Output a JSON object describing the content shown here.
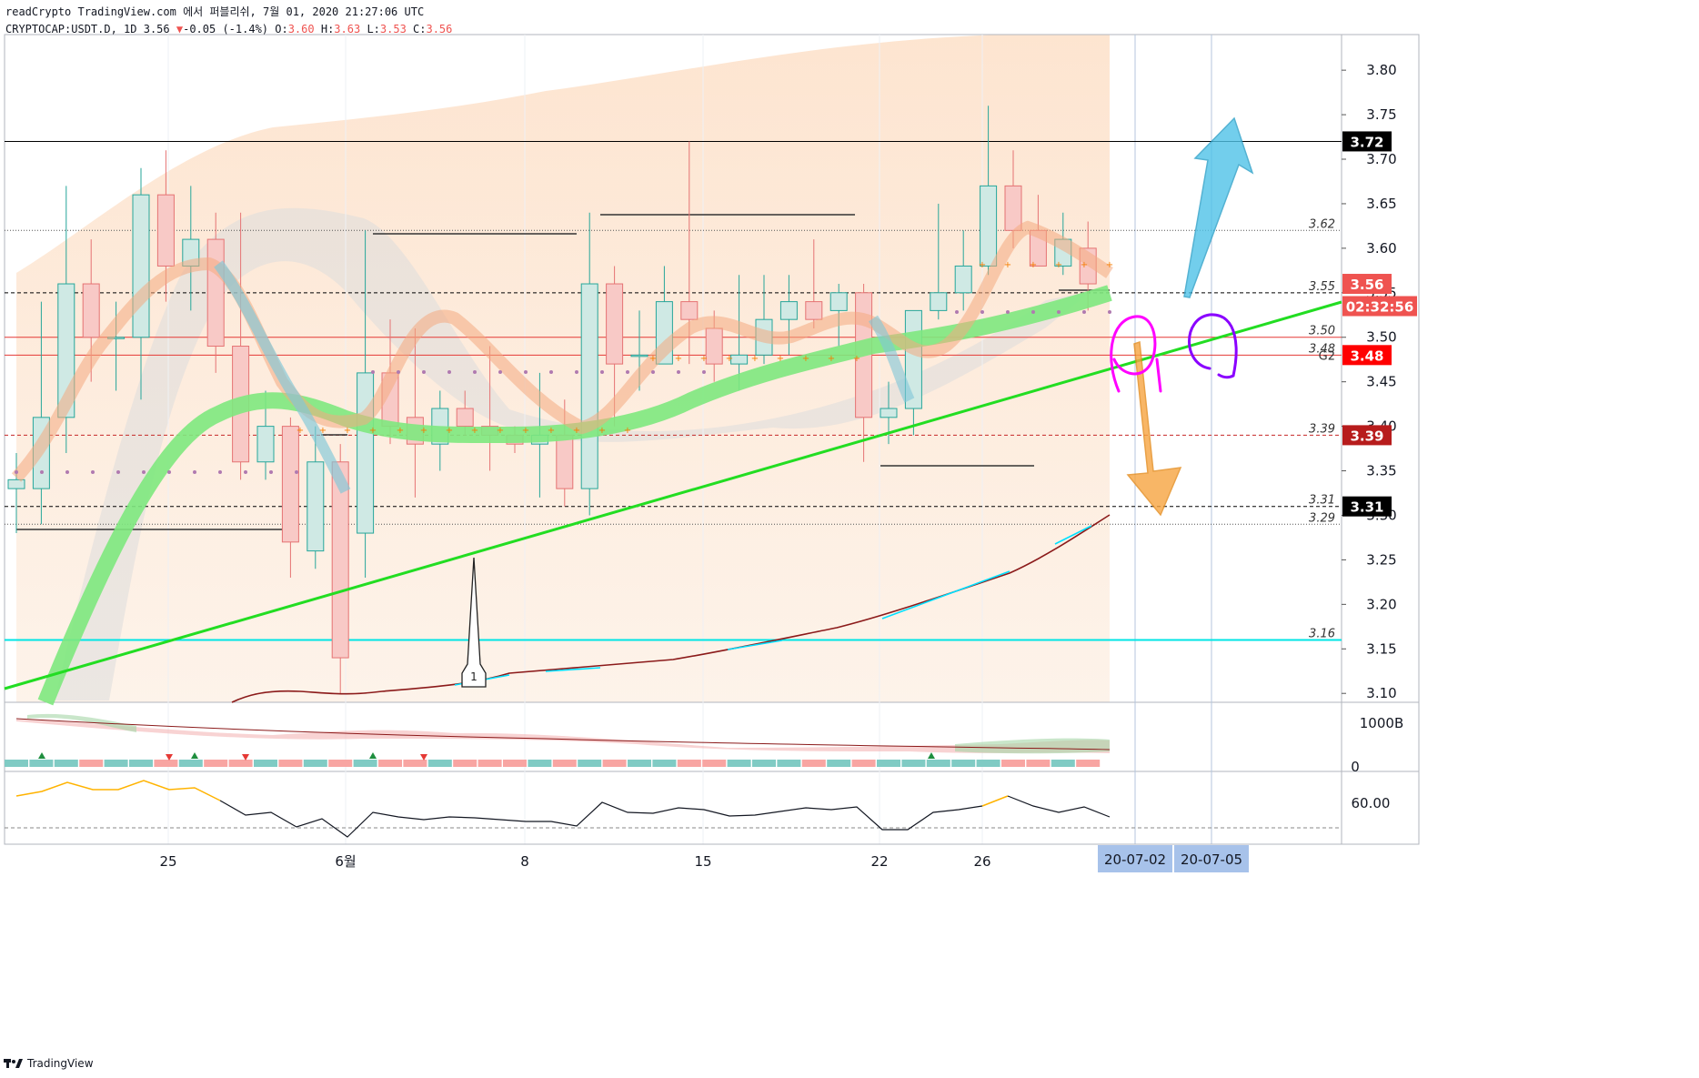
{
  "header": {
    "line1": "readCrypto TradingView.com 에서 퍼블리쉬, 7월 01, 2020 21:27:06 UTC",
    "symbol": "CRYPTOCAP:USDT.D, 1D 3.56",
    "change": "-0.05 (-1.4%)",
    "o_label": "O:",
    "o": "3.60",
    "h_label": "H:",
    "h": "3.63",
    "l_label": "L:",
    "l": "3.53",
    "c_label": "C:",
    "c": "3.56"
  },
  "footer": {
    "brand": "TradingView"
  },
  "colors": {
    "up": "#26a69a",
    "down": "#ef5350",
    "trend": "#27d927",
    "cyan": "#00e5e5",
    "blue_arrow": "#4fc3e8",
    "orange_arrow": "#f7a540",
    "magenta": "#ff00ff",
    "purple": "#8a00ff",
    "background_band": "#fde8d4"
  },
  "chart_data": {
    "type": "candlestick",
    "ylim": [
      3.09,
      3.84
    ],
    "y_ticks": [
      "3.80",
      "3.75",
      "3.70",
      "3.65",
      "3.60",
      "3.55",
      "3.50",
      "3.45",
      "3.40",
      "3.35",
      "3.30",
      "3.25",
      "3.20",
      "3.15",
      "3.10"
    ],
    "x_tick_labels": [
      "25",
      "6월",
      "8",
      "15",
      "22",
      "26"
    ],
    "date_markers": [
      "20-07-02",
      "20-07-05"
    ],
    "candles": [
      {
        "o": 3.33,
        "h": 3.37,
        "l": 3.28,
        "c": 3.34
      },
      {
        "o": 3.33,
        "h": 3.54,
        "l": 3.29,
        "c": 3.41
      },
      {
        "o": 3.41,
        "h": 3.67,
        "l": 3.37,
        "c": 3.56
      },
      {
        "o": 3.56,
        "h": 3.61,
        "l": 3.45,
        "c": 3.5
      },
      {
        "o": 3.5,
        "h": 3.54,
        "l": 3.44,
        "c": 3.5
      },
      {
        "o": 3.5,
        "h": 3.69,
        "l": 3.43,
        "c": 3.66
      },
      {
        "o": 3.66,
        "h": 3.71,
        "l": 3.54,
        "c": 3.58
      },
      {
        "o": 3.58,
        "h": 3.67,
        "l": 3.53,
        "c": 3.61
      },
      {
        "o": 3.61,
        "h": 3.64,
        "l": 3.46,
        "c": 3.49
      },
      {
        "o": 3.49,
        "h": 3.64,
        "l": 3.34,
        "c": 3.36
      },
      {
        "o": 3.36,
        "h": 3.44,
        "l": 3.34,
        "c": 3.4
      },
      {
        "o": 3.4,
        "h": 3.41,
        "l": 3.23,
        "c": 3.27
      },
      {
        "o": 3.26,
        "h": 3.4,
        "l": 3.24,
        "c": 3.36
      },
      {
        "o": 3.36,
        "h": 3.38,
        "l": 3.1,
        "c": 3.14
      },
      {
        "o": 3.28,
        "h": 3.62,
        "l": 3.23,
        "c": 3.46
      },
      {
        "o": 3.46,
        "h": 3.52,
        "l": 3.38,
        "c": 3.4
      },
      {
        "o": 3.41,
        "h": 3.51,
        "l": 3.32,
        "c": 3.38
      },
      {
        "o": 3.38,
        "h": 3.44,
        "l": 3.35,
        "c": 3.42
      },
      {
        "o": 3.42,
        "h": 3.44,
        "l": 3.39,
        "c": 3.4
      },
      {
        "o": 3.4,
        "h": 3.49,
        "l": 3.35,
        "c": 3.39
      },
      {
        "o": 3.39,
        "h": 3.4,
        "l": 3.37,
        "c": 3.38
      },
      {
        "o": 3.38,
        "h": 3.46,
        "l": 3.32,
        "c": 3.39
      },
      {
        "o": 3.39,
        "h": 3.43,
        "l": 3.31,
        "c": 3.33
      },
      {
        "o": 3.33,
        "h": 3.64,
        "l": 3.3,
        "c": 3.56
      },
      {
        "o": 3.56,
        "h": 3.58,
        "l": 3.4,
        "c": 3.47
      },
      {
        "o": 3.48,
        "h": 3.53,
        "l": 3.44,
        "c": 3.48
      },
      {
        "o": 3.47,
        "h": 3.58,
        "l": 3.47,
        "c": 3.54
      },
      {
        "o": 3.54,
        "h": 3.72,
        "l": 3.47,
        "c": 3.52
      },
      {
        "o": 3.51,
        "h": 3.53,
        "l": 3.45,
        "c": 3.47
      },
      {
        "o": 3.47,
        "h": 3.57,
        "l": 3.44,
        "c": 3.48
      },
      {
        "o": 3.48,
        "h": 3.57,
        "l": 3.47,
        "c": 3.52
      },
      {
        "o": 3.52,
        "h": 3.57,
        "l": 3.48,
        "c": 3.54
      },
      {
        "o": 3.54,
        "h": 3.61,
        "l": 3.51,
        "c": 3.52
      },
      {
        "o": 3.53,
        "h": 3.56,
        "l": 3.49,
        "c": 3.55
      },
      {
        "o": 3.55,
        "h": 3.56,
        "l": 3.36,
        "c": 3.41
      },
      {
        "o": 3.41,
        "h": 3.45,
        "l": 3.38,
        "c": 3.42
      },
      {
        "o": 3.42,
        "h": 3.53,
        "l": 3.39,
        "c": 3.53
      },
      {
        "o": 3.53,
        "h": 3.65,
        "l": 3.52,
        "c": 3.55
      },
      {
        "o": 3.55,
        "h": 3.62,
        "l": 3.53,
        "c": 3.58
      },
      {
        "o": 3.58,
        "h": 3.76,
        "l": 3.57,
        "c": 3.67
      },
      {
        "o": 3.67,
        "h": 3.71,
        "l": 3.6,
        "c": 3.62
      },
      {
        "o": 3.62,
        "h": 3.66,
        "l": 3.58,
        "c": 3.58
      },
      {
        "o": 3.58,
        "h": 3.64,
        "l": 3.57,
        "c": 3.61
      },
      {
        "o": 3.6,
        "h": 3.63,
        "l": 3.53,
        "c": 3.56
      }
    ],
    "horizontal_levels": [
      {
        "value": 3.72,
        "label": "3.72",
        "style": "solid-black"
      },
      {
        "value": 3.62,
        "label": "3.62",
        "style": "dotted"
      },
      {
        "value": 3.55,
        "label": "3.55",
        "style": "dashed"
      },
      {
        "value": 3.5,
        "label": "3.50",
        "style": "solid-red"
      },
      {
        "value": 3.48,
        "label": "3.48",
        "tag": "G2",
        "style": "solid-red"
      },
      {
        "value": 3.39,
        "label": "3.39",
        "style": "dashed-red"
      },
      {
        "value": 3.31,
        "label": "3.31",
        "style": "dashed"
      },
      {
        "value": 3.29,
        "label": "3.29",
        "style": "dotted"
      },
      {
        "value": 3.16,
        "label": "3.16",
        "style": "solid-cyan"
      }
    ],
    "price_tags": [
      {
        "value": 3.72,
        "text": "3.72",
        "bg": "#000000"
      },
      {
        "value": 3.56,
        "text": "3.56",
        "bg": "#ef5350"
      },
      {
        "value": 3.535,
        "text": "02:32:56",
        "bg": "#ef5350"
      },
      {
        "value": 3.48,
        "text": "3.48",
        "bg": "#ff0000"
      },
      {
        "value": 3.39,
        "text": "3.39",
        "bg": "#b71c1c"
      },
      {
        "value": 3.31,
        "text": "3.31",
        "bg": "#000000"
      }
    ],
    "annotation_marker": "1",
    "volume_axis": {
      "top_label": "1000B",
      "bottom_label": "0"
    },
    "oscillator_axis": {
      "label": "60.00"
    }
  }
}
